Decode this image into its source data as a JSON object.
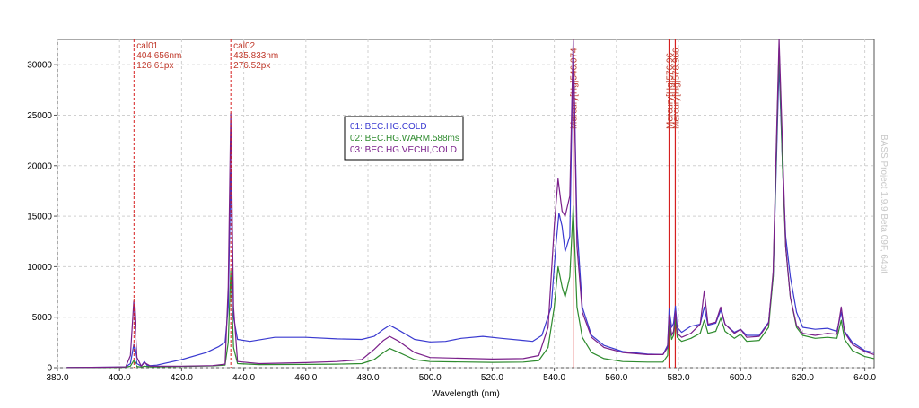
{
  "chart_data": {
    "type": "line",
    "xlabel": "Wavelength (nm)",
    "ylabel": "",
    "xlim": [
      380,
      643
    ],
    "ylim": [
      0,
      32500
    ],
    "x_ticks": [
      "380.0",
      "400.0",
      "420.0",
      "440.0",
      "460.0",
      "480.0",
      "500.0",
      "520.0",
      "540.0",
      "560.0",
      "580.0",
      "600.0",
      "620.0",
      "640.0"
    ],
    "y_ticks": [
      "0",
      "5000",
      "10000",
      "15000",
      "20000",
      "25000",
      "30000"
    ],
    "grid": "dashed",
    "legend_position": "center",
    "watermark": "BASS Project 1.9.9 Beta 09F, 64bit",
    "calibration_markers": [
      {
        "x": 404.656,
        "lines": [
          "cal01",
          "404.656nm",
          "126.61px"
        ]
      },
      {
        "x": 435.833,
        "lines": [
          "cal02",
          "435.833nm",
          "276.52px"
        ]
      }
    ],
    "reference_lines": [
      {
        "x": 546.074,
        "label": "Mercury[Hg]546.074"
      },
      {
        "x": 576.96,
        "label": "Mercury[Hg]576.96"
      },
      {
        "x": 578.966,
        "label": "Mercury[Hg]578.966"
      }
    ],
    "series": [
      {
        "name": "01: BEC.HG.COLD",
        "color": "#3a3ad0",
        "points": [
          [
            383,
            20
          ],
          [
            395,
            40
          ],
          [
            402,
            80
          ],
          [
            403.5,
            400
          ],
          [
            404.6,
            2300
          ],
          [
            405.6,
            400
          ],
          [
            407,
            160
          ],
          [
            408,
            600
          ],
          [
            409,
            180
          ],
          [
            412,
            250
          ],
          [
            420,
            800
          ],
          [
            428,
            1500
          ],
          [
            432,
            2100
          ],
          [
            434,
            2500
          ],
          [
            435,
            6000
          ],
          [
            435.8,
            19300
          ],
          [
            436.7,
            5000
          ],
          [
            438,
            2800
          ],
          [
            442,
            2600
          ],
          [
            450,
            3000
          ],
          [
            460,
            3000
          ],
          [
            470,
            2850
          ],
          [
            478,
            2800
          ],
          [
            482,
            3100
          ],
          [
            485,
            3800
          ],
          [
            487,
            4200
          ],
          [
            490,
            3700
          ],
          [
            495,
            2800
          ],
          [
            500,
            2550
          ],
          [
            505,
            2600
          ],
          [
            510,
            2900
          ],
          [
            517,
            3100
          ],
          [
            523,
            2900
          ],
          [
            530,
            2700
          ],
          [
            533,
            2600
          ],
          [
            536,
            3200
          ],
          [
            539,
            6000
          ],
          [
            540.5,
            12000
          ],
          [
            541.5,
            15300
          ],
          [
            542.5,
            14000
          ],
          [
            543.5,
            11500
          ],
          [
            545,
            13000
          ],
          [
            546.1,
            32300
          ],
          [
            547.3,
            14000
          ],
          [
            549,
            6000
          ],
          [
            552,
            3200
          ],
          [
            556,
            2200
          ],
          [
            562,
            1600
          ],
          [
            570,
            1350
          ],
          [
            575,
            1300
          ],
          [
            576.5,
            2200
          ],
          [
            577,
            5800
          ],
          [
            577.8,
            4000
          ],
          [
            578.4,
            4400
          ],
          [
            579,
            6100
          ],
          [
            579.6,
            4000
          ],
          [
            581,
            3500
          ],
          [
            584,
            4100
          ],
          [
            587,
            4300
          ],
          [
            588.3,
            6000
          ],
          [
            589.5,
            4200
          ],
          [
            592,
            4400
          ],
          [
            593.6,
            5700
          ],
          [
            595,
            4300
          ],
          [
            598,
            3500
          ],
          [
            600,
            3800
          ],
          [
            602,
            3200
          ],
          [
            606,
            3200
          ],
          [
            609,
            4500
          ],
          [
            610.5,
            9000
          ],
          [
            611.5,
            20000
          ],
          [
            612.4,
            30100
          ],
          [
            613.5,
            20000
          ],
          [
            614.5,
            13000
          ],
          [
            616,
            9000
          ],
          [
            618,
            5500
          ],
          [
            620,
            4000
          ],
          [
            624,
            3800
          ],
          [
            628,
            3900
          ],
          [
            631,
            3600
          ],
          [
            632.4,
            5500
          ],
          [
            633.5,
            3600
          ],
          [
            636,
            2500
          ],
          [
            640,
            1700
          ],
          [
            643,
            1500
          ]
        ]
      },
      {
        "name": "02: BEC.HG.WARM.588ms",
        "color": "#2e8b2e",
        "points": [
          [
            383,
            15
          ],
          [
            395,
            20
          ],
          [
            402,
            40
          ],
          [
            403.5,
            150
          ],
          [
            404.6,
            700
          ],
          [
            405.6,
            120
          ],
          [
            407,
            60
          ],
          [
            408,
            150
          ],
          [
            410,
            80
          ],
          [
            420,
            120
          ],
          [
            430,
            180
          ],
          [
            434,
            250
          ],
          [
            435,
            2500
          ],
          [
            435.8,
            9600
          ],
          [
            436.7,
            2000
          ],
          [
            438,
            400
          ],
          [
            445,
            300
          ],
          [
            460,
            320
          ],
          [
            470,
            350
          ],
          [
            478,
            400
          ],
          [
            482,
            800
          ],
          [
            485,
            1500
          ],
          [
            487,
            1900
          ],
          [
            490,
            1500
          ],
          [
            495,
            800
          ],
          [
            500,
            600
          ],
          [
            520,
            520
          ],
          [
            530,
            550
          ],
          [
            535,
            700
          ],
          [
            538,
            2000
          ],
          [
            540,
            6000
          ],
          [
            541.2,
            10000
          ],
          [
            542.5,
            8000
          ],
          [
            543.5,
            7000
          ],
          [
            545,
            9000
          ],
          [
            546.1,
            16000
          ],
          [
            547.3,
            6000
          ],
          [
            549,
            3000
          ],
          [
            552,
            1500
          ],
          [
            556,
            900
          ],
          [
            562,
            600
          ],
          [
            570,
            550
          ],
          [
            575,
            550
          ],
          [
            576.5,
            1200
          ],
          [
            577,
            4300
          ],
          [
            577.8,
            2800
          ],
          [
            578.4,
            3200
          ],
          [
            579,
            4800
          ],
          [
            579.6,
            3000
          ],
          [
            581,
            2600
          ],
          [
            584,
            2900
          ],
          [
            587,
            3400
          ],
          [
            588.3,
            4700
          ],
          [
            589.5,
            3400
          ],
          [
            592,
            3600
          ],
          [
            593.6,
            4900
          ],
          [
            595,
            3600
          ],
          [
            598,
            2900
          ],
          [
            600,
            3300
          ],
          [
            602,
            2600
          ],
          [
            606,
            2700
          ],
          [
            609,
            4000
          ],
          [
            610.5,
            9000
          ],
          [
            611.5,
            21000
          ],
          [
            612.4,
            31800
          ],
          [
            613.5,
            20000
          ],
          [
            614.5,
            12000
          ],
          [
            616,
            7000
          ],
          [
            618,
            4000
          ],
          [
            620,
            3200
          ],
          [
            624,
            2900
          ],
          [
            628,
            3000
          ],
          [
            631,
            2900
          ],
          [
            632.4,
            4700
          ],
          [
            633.5,
            2800
          ],
          [
            636,
            1700
          ],
          [
            640,
            1100
          ],
          [
            643,
            900
          ]
        ]
      },
      {
        "name": "03: BEC.HG.VECHI,COLD",
        "color": "#7a1f8a",
        "points": [
          [
            383,
            20
          ],
          [
            395,
            40
          ],
          [
            402,
            80
          ],
          [
            403.5,
            1200
          ],
          [
            404.6,
            6600
          ],
          [
            405.6,
            1000
          ],
          [
            407,
            150
          ],
          [
            408,
            500
          ],
          [
            410,
            150
          ],
          [
            420,
            150
          ],
          [
            430,
            200
          ],
          [
            434,
            350
          ],
          [
            435,
            8000
          ],
          [
            435.8,
            25200
          ],
          [
            436.7,
            6000
          ],
          [
            438,
            600
          ],
          [
            445,
            400
          ],
          [
            460,
            500
          ],
          [
            470,
            600
          ],
          [
            478,
            800
          ],
          [
            482,
            1800
          ],
          [
            485,
            2700
          ],
          [
            487,
            3100
          ],
          [
            490,
            2600
          ],
          [
            495,
            1500
          ],
          [
            500,
            1000
          ],
          [
            520,
            850
          ],
          [
            530,
            900
          ],
          [
            535,
            1200
          ],
          [
            538,
            4000
          ],
          [
            540,
            14000
          ],
          [
            541.2,
            18700
          ],
          [
            542.5,
            15500
          ],
          [
            543.5,
            15000
          ],
          [
            545,
            17000
          ],
          [
            546.1,
            32500
          ],
          [
            547.3,
            12000
          ],
          [
            549,
            5500
          ],
          [
            552,
            3000
          ],
          [
            556,
            2000
          ],
          [
            562,
            1500
          ],
          [
            570,
            1300
          ],
          [
            575,
            1300
          ],
          [
            576.5,
            2000
          ],
          [
            577,
            5200
          ],
          [
            577.8,
            3200
          ],
          [
            578.4,
            3600
          ],
          [
            579,
            5600
          ],
          [
            579.6,
            3400
          ],
          [
            581,
            3000
          ],
          [
            584,
            3400
          ],
          [
            587,
            4300
          ],
          [
            588.3,
            7600
          ],
          [
            589.5,
            4300
          ],
          [
            592,
            4500
          ],
          [
            593.6,
            6000
          ],
          [
            595,
            4300
          ],
          [
            598,
            3400
          ],
          [
            600,
            3800
          ],
          [
            602,
            3000
          ],
          [
            606,
            3100
          ],
          [
            609,
            4400
          ],
          [
            610.5,
            9500
          ],
          [
            611.5,
            22000
          ],
          [
            612.4,
            32500
          ],
          [
            613.5,
            22000
          ],
          [
            614.5,
            12000
          ],
          [
            616,
            7000
          ],
          [
            618,
            4200
          ],
          [
            620,
            3400
          ],
          [
            624,
            3200
          ],
          [
            628,
            3400
          ],
          [
            631,
            3300
          ],
          [
            632.4,
            6000
          ],
          [
            633.5,
            3500
          ],
          [
            636,
            2300
          ],
          [
            640,
            1600
          ],
          [
            643,
            1300
          ]
        ]
      }
    ]
  }
}
